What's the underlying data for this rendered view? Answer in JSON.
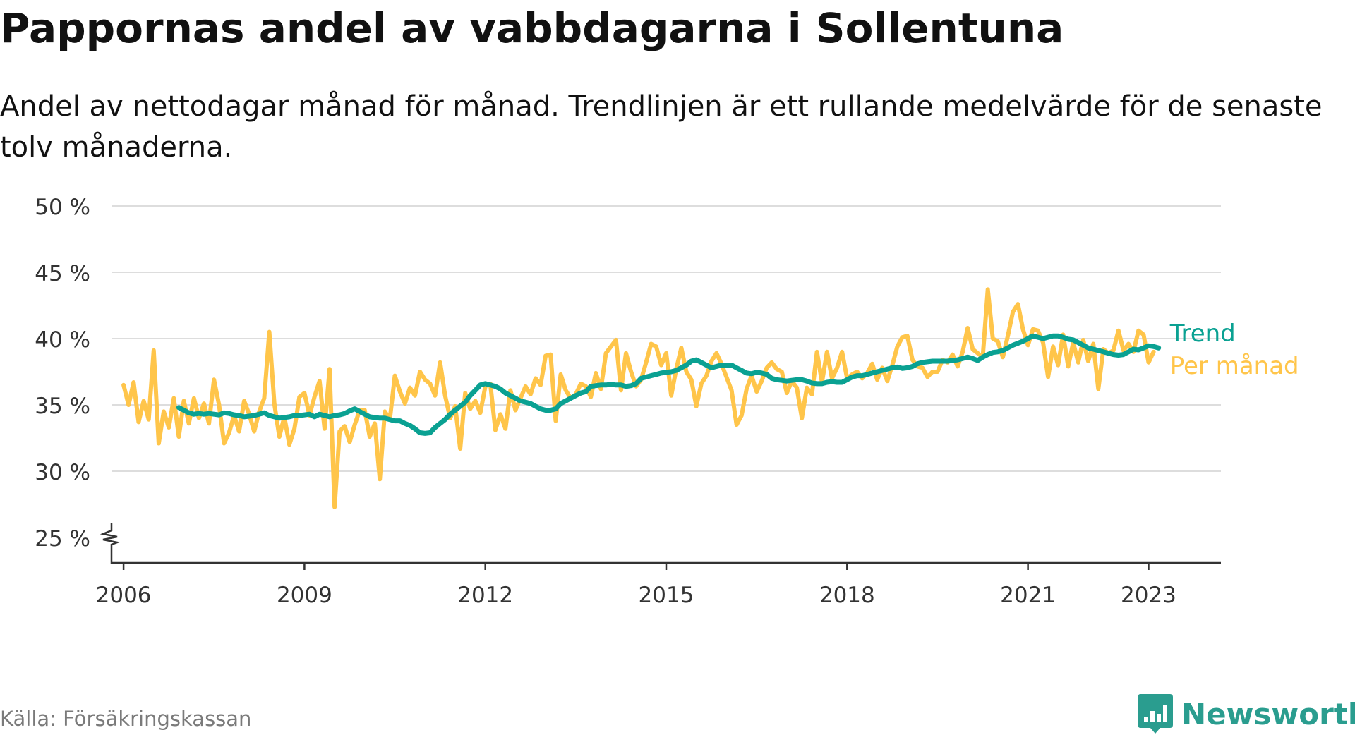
{
  "title": "Pappornas andel av vabbdagarna i Sollentuna",
  "subtitle": "Andel av nettodagar månad för månad. Trendlinjen är ett rullande medelvärde för de senaste tolv månaderna.",
  "source": "Källa: Försäkringskassan",
  "brand": "Newsworthy",
  "colors": {
    "trend": "#0aa192",
    "monthly": "#ffc54a",
    "grid": "#dddddd",
    "axis": "#333333",
    "brand": "#2a9d8f"
  },
  "chart_data": {
    "type": "line",
    "title": "Pappornas andel av vabbdagarna i Sollentuna",
    "ylim": [
      25,
      50
    ],
    "y_ticks": [
      {
        "value": 25,
        "label": "25 %"
      },
      {
        "value": 30,
        "label": "30 %"
      },
      {
        "value": 35,
        "label": "35 %"
      },
      {
        "value": 40,
        "label": "40 %"
      },
      {
        "value": 45,
        "label": "45 %"
      },
      {
        "value": 50,
        "label": "50 %"
      }
    ],
    "x_ticks": [
      {
        "value": 2006,
        "label": "2006"
      },
      {
        "value": 2009,
        "label": "2009"
      },
      {
        "value": 2012,
        "label": "2012"
      },
      {
        "value": 2015,
        "label": "2015"
      },
      {
        "value": 2018,
        "label": "2018"
      },
      {
        "value": 2021,
        "label": "2021"
      },
      {
        "value": 2023,
        "label": "2023"
      }
    ],
    "x_start": "2006-01",
    "y_axis_break": true,
    "grid": true,
    "series": [
      {
        "name": "Per månad",
        "color": "#ffc54a",
        "values": [
          36.5,
          35.0,
          36.7,
          33.7,
          35.3,
          33.9,
          39.1,
          32.1,
          34.5,
          33.3,
          35.5,
          32.6,
          35.3,
          33.6,
          35.5,
          34.0,
          35.1,
          33.6,
          36.9,
          35.0,
          32.1,
          32.9,
          34.2,
          33.0,
          35.3,
          34.3,
          33.0,
          34.5,
          35.5,
          40.5,
          35.1,
          32.6,
          34.1,
          32.0,
          33.2,
          35.6,
          35.9,
          34.2,
          35.6,
          36.8,
          33.2,
          37.7,
          27.3,
          33.0,
          33.4,
          32.2,
          33.5,
          34.6,
          34.6,
          32.6,
          33.6,
          29.4,
          34.5,
          33.9,
          37.2,
          36.0,
          35.1,
          36.3,
          35.7,
          37.5,
          36.9,
          36.6,
          35.7,
          38.2,
          35.7,
          34.0,
          34.9,
          31.7,
          35.9,
          34.7,
          35.3,
          34.4,
          36.4,
          36.6,
          33.1,
          34.3,
          33.2,
          36.1,
          34.6,
          35.5,
          36.4,
          35.8,
          37.0,
          36.5,
          38.7,
          38.8,
          33.8,
          37.3,
          36.1,
          35.5,
          35.8,
          36.6,
          36.4,
          35.6,
          37.4,
          36.2,
          38.9,
          39.4,
          39.9,
          36.1,
          38.9,
          37.5,
          36.4,
          36.9,
          38.2,
          39.6,
          39.4,
          38.0,
          38.9,
          35.7,
          37.7,
          39.3,
          37.5,
          36.9,
          34.9,
          36.6,
          37.2,
          38.3,
          38.9,
          38.1,
          37.1,
          36.1,
          33.5,
          34.2,
          36.2,
          37.2,
          36.0,
          36.8,
          37.8,
          38.2,
          37.7,
          37.5,
          35.9,
          36.8,
          36.3,
          34.0,
          36.3,
          35.8,
          39.0,
          36.7,
          39.0,
          37.0,
          37.8,
          39.0,
          37.0,
          37.3,
          37.5,
          37.0,
          37.4,
          38.1,
          36.9,
          37.8,
          36.8,
          38.0,
          39.4,
          40.1,
          40.2,
          38.4,
          37.9,
          37.8,
          37.1,
          37.5,
          37.5,
          38.4,
          38.2,
          38.8,
          37.9,
          39.0,
          40.8,
          39.2,
          38.9,
          38.6,
          43.7,
          40.0,
          39.8,
          38.6,
          40.2,
          42.0,
          42.6,
          40.7,
          39.5,
          40.7,
          40.6,
          39.7,
          37.1,
          39.4,
          38.0,
          40.3,
          37.9,
          39.7,
          38.2,
          39.9,
          38.3,
          39.6,
          36.2,
          39.2,
          38.9,
          39.1,
          40.6,
          39.1,
          39.6,
          39.0,
          40.6,
          40.3,
          38.2,
          39.0
        ]
      },
      {
        "name": "Trend",
        "color": "#0aa192",
        "values": [
          34.8,
          34.6,
          34.4,
          34.3,
          34.35,
          34.3,
          34.35,
          34.3,
          34.25,
          34.4,
          34.35,
          34.25,
          34.2,
          34.1,
          34.15,
          34.2,
          34.3,
          34.4,
          34.2,
          34.1,
          34.0,
          34.05,
          34.1,
          34.2,
          34.2,
          34.25,
          34.3,
          34.1,
          34.3,
          34.2,
          34.1,
          34.2,
          34.25,
          34.35,
          34.55,
          34.7,
          34.5,
          34.3,
          34.1,
          34.05,
          34.0,
          34.0,
          33.9,
          33.8,
          33.8,
          33.6,
          33.45,
          33.2,
          32.9,
          32.85,
          32.9,
          33.3,
          33.6,
          33.9,
          34.3,
          34.6,
          34.9,
          35.2,
          35.7,
          36.1,
          36.5,
          36.6,
          36.5,
          36.4,
          36.2,
          35.9,
          35.7,
          35.5,
          35.3,
          35.2,
          35.1,
          34.9,
          34.7,
          34.6,
          34.6,
          34.7,
          35.1,
          35.3,
          35.5,
          35.7,
          35.9,
          36.0,
          36.4,
          36.45,
          36.5,
          36.5,
          36.55,
          36.5,
          36.5,
          36.4,
          36.45,
          36.6,
          37.0,
          37.1,
          37.2,
          37.3,
          37.4,
          37.45,
          37.5,
          37.6,
          37.8,
          38.0,
          38.3,
          38.4,
          38.2,
          38.0,
          37.8,
          37.9,
          38.0,
          38.0,
          38.0,
          37.8,
          37.6,
          37.4,
          37.35,
          37.45,
          37.4,
          37.3,
          37.0,
          36.9,
          36.85,
          36.8,
          36.85,
          36.9,
          36.9,
          36.8,
          36.65,
          36.6,
          36.6,
          36.7,
          36.75,
          36.7,
          36.7,
          36.9,
          37.1,
          37.2,
          37.2,
          37.3,
          37.4,
          37.5,
          37.6,
          37.7,
          37.8,
          37.85,
          37.75,
          37.8,
          37.9,
          38.1,
          38.2,
          38.25,
          38.3,
          38.3,
          38.3,
          38.3,
          38.35,
          38.4,
          38.5,
          38.6,
          38.5,
          38.35,
          38.6,
          38.8,
          38.95,
          39.0,
          39.1,
          39.3,
          39.5,
          39.65,
          39.8,
          40.0,
          40.2,
          40.1,
          40.0,
          40.1,
          40.2,
          40.2,
          40.1,
          39.95,
          39.9,
          39.7,
          39.5,
          39.3,
          39.2,
          39.1,
          39.0,
          38.9,
          38.8,
          38.75,
          38.8,
          39.0,
          39.2,
          39.15,
          39.3,
          39.45,
          39.4,
          39.3
        ]
      }
    ],
    "trend_start": "2006-12"
  }
}
